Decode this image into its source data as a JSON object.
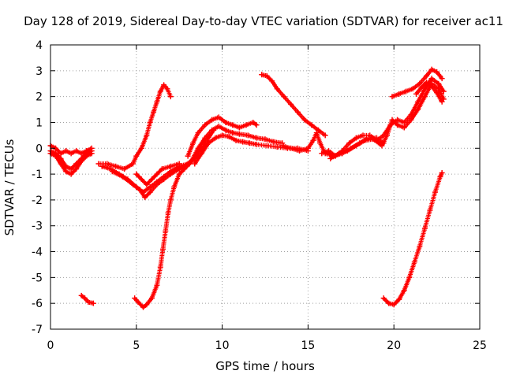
{
  "chart_data": {
    "type": "scatter",
    "title": "Day 128 of 2019, Sidereal Day-to-day VTEC variation (SDTVAR) for receiver ac11",
    "xlabel": "GPS time / hours",
    "ylabel": "SDTVAR / TECUs",
    "xlim": [
      0,
      25
    ],
    "ylim": [
      -7,
      4
    ],
    "xticks": [
      "0",
      "5",
      "10",
      "15",
      "20",
      "25"
    ],
    "yticks": [
      "-7",
      "-6",
      "-5",
      "-4",
      "-3",
      "-2",
      "-1",
      "0",
      "1",
      "2",
      "3",
      "4"
    ],
    "grid": true,
    "marker": "+",
    "color": "#ff0000",
    "series": [
      {
        "points": [
          [
            0,
            0.1
          ],
          [
            0.3,
            0
          ],
          [
            0.6,
            -0.2
          ],
          [
            0.9,
            -0.1
          ],
          [
            1.2,
            -0.2
          ],
          [
            1.5,
            -0.1
          ],
          [
            1.8,
            -0.2
          ],
          [
            2.1,
            -0.1
          ],
          [
            2.4,
            0
          ]
        ]
      },
      {
        "points": [
          [
            0,
            -0.1
          ],
          [
            0.3,
            -0.2
          ],
          [
            0.6,
            -0.4
          ],
          [
            0.9,
            -0.7
          ],
          [
            1.2,
            -0.8
          ],
          [
            1.5,
            -0.6
          ],
          [
            1.8,
            -0.4
          ],
          [
            2.1,
            -0.2
          ],
          [
            2.4,
            -0.1
          ]
        ]
      },
      {
        "points": [
          [
            0,
            -0.2
          ],
          [
            0.3,
            -0.3
          ],
          [
            0.6,
            -0.6
          ],
          [
            0.9,
            -0.9
          ],
          [
            1.2,
            -1
          ],
          [
            1.5,
            -0.8
          ],
          [
            1.8,
            -0.5
          ],
          [
            2.1,
            -0.3
          ],
          [
            2.4,
            -0.2
          ]
        ]
      },
      {
        "points": [
          [
            2.8,
            -0.6
          ],
          [
            3.3,
            -0.6
          ],
          [
            3.8,
            -0.7
          ],
          [
            4.3,
            -0.8
          ],
          [
            4.8,
            -0.6
          ],
          [
            5.0,
            -0.3
          ],
          [
            5.3,
            0
          ],
          [
            5.6,
            0.5
          ],
          [
            5.8,
            1
          ],
          [
            6.0,
            1.4
          ],
          [
            6.2,
            1.8
          ],
          [
            6.4,
            2.2
          ],
          [
            6.6,
            2.45
          ],
          [
            6.8,
            2.3
          ],
          [
            7.0,
            2.0
          ]
        ]
      },
      {
        "points": [
          [
            3.0,
            -0.7
          ],
          [
            3.5,
            -0.8
          ],
          [
            4.0,
            -1.0
          ],
          [
            4.5,
            -1.2
          ],
          [
            5.0,
            -1.5
          ],
          [
            5.4,
            -1.7
          ],
          [
            5.8,
            -1.5
          ],
          [
            6.2,
            -1.3
          ],
          [
            6.6,
            -1.1
          ],
          [
            7.0,
            -0.9
          ],
          [
            7.5,
            -0.7
          ],
          [
            8.0,
            -0.6
          ],
          [
            8.5,
            -0.3
          ]
        ]
      },
      {
        "points": [
          [
            3.6,
            -0.9
          ],
          [
            4.2,
            -1.1
          ],
          [
            4.8,
            -1.4
          ],
          [
            5.2,
            -1.6
          ],
          [
            5.5,
            -1.9
          ],
          [
            5.8,
            -1.7
          ],
          [
            6.2,
            -1.4
          ],
          [
            6.6,
            -1.2
          ],
          [
            7.0,
            -1.0
          ],
          [
            7.5,
            -0.8
          ],
          [
            8.0,
            -0.6
          ],
          [
            8.4,
            -0.4
          ]
        ]
      },
      {
        "points": [
          [
            5.0,
            -1.0
          ],
          [
            5.3,
            -1.2
          ],
          [
            5.6,
            -1.4
          ],
          [
            5.9,
            -1.2
          ],
          [
            6.2,
            -1.0
          ],
          [
            6.5,
            -0.8
          ],
          [
            7.0,
            -0.7
          ],
          [
            7.5,
            -0.6
          ]
        ]
      },
      {
        "points": [
          [
            1.8,
            -5.7
          ],
          [
            2.0,
            -5.8
          ],
          [
            2.2,
            -5.95
          ],
          [
            2.5,
            -6.0
          ]
        ]
      },
      {
        "points": [
          [
            4.9,
            -5.8
          ],
          [
            5.1,
            -5.95
          ],
          [
            5.4,
            -6.15
          ],
          [
            5.6,
            -6.05
          ],
          [
            5.9,
            -5.8
          ],
          [
            6.2,
            -5.3
          ],
          [
            6.4,
            -4.6
          ],
          [
            6.55,
            -3.9
          ],
          [
            6.7,
            -3.2
          ],
          [
            6.85,
            -2.5
          ],
          [
            7.0,
            -2.0
          ],
          [
            7.2,
            -1.5
          ],
          [
            7.5,
            -1.0
          ],
          [
            7.8,
            -0.8
          ],
          [
            8.1,
            -0.6
          ],
          [
            8.5,
            -0.3
          ],
          [
            9.0,
            0.2
          ],
          [
            9.5,
            0.7
          ]
        ]
      },
      {
        "points": [
          [
            8.0,
            -0.3
          ],
          [
            8.3,
            0.2
          ],
          [
            8.6,
            0.6
          ],
          [
            9.0,
            0.9
          ],
          [
            9.4,
            1.1
          ],
          [
            9.8,
            1.2
          ],
          [
            10.2,
            1.0
          ],
          [
            10.6,
            0.9
          ],
          [
            11.0,
            0.8
          ],
          [
            11.4,
            0.9
          ],
          [
            11.8,
            1.0
          ],
          [
            12.0,
            0.9
          ]
        ]
      },
      {
        "points": [
          [
            8.2,
            -0.5
          ],
          [
            8.6,
            0
          ],
          [
            9.0,
            0.4
          ],
          [
            9.4,
            0.7
          ],
          [
            9.8,
            0.85
          ],
          [
            10.2,
            0.7
          ],
          [
            10.6,
            0.6
          ],
          [
            11.0,
            0.55
          ],
          [
            11.5,
            0.5
          ],
          [
            12.0,
            0.4
          ],
          [
            12.5,
            0.35
          ],
          [
            13.0,
            0.25
          ],
          [
            13.5,
            0.2
          ]
        ]
      },
      {
        "points": [
          [
            8.4,
            -0.6
          ],
          [
            8.8,
            -0.2
          ],
          [
            9.2,
            0.2
          ],
          [
            9.6,
            0.4
          ],
          [
            10.0,
            0.5
          ],
          [
            10.4,
            0.45
          ],
          [
            10.8,
            0.3
          ],
          [
            11.2,
            0.25
          ],
          [
            11.6,
            0.2
          ],
          [
            12.0,
            0.15
          ],
          [
            12.6,
            0.1
          ],
          [
            13.2,
            0.05
          ],
          [
            13.8,
            0
          ],
          [
            14.4,
            0
          ],
          [
            15.0,
            -0.1
          ]
        ]
      },
      {
        "points": [
          [
            12.3,
            2.85
          ],
          [
            12.6,
            2.8
          ],
          [
            12.9,
            2.6
          ],
          [
            13.2,
            2.3
          ],
          [
            13.6,
            2.0
          ],
          [
            14.0,
            1.7
          ],
          [
            14.4,
            1.4
          ],
          [
            14.8,
            1.1
          ],
          [
            15.2,
            0.9
          ],
          [
            15.6,
            0.7
          ],
          [
            16.0,
            0.5
          ]
        ]
      },
      {
        "points": [
          [
            13.5,
            0.1
          ],
          [
            14.0,
            0
          ],
          [
            14.5,
            -0.1
          ],
          [
            15.0,
            0
          ],
          [
            15.3,
            0.3
          ],
          [
            15.5,
            0.6
          ],
          [
            15.7,
            0.2
          ],
          [
            16.0,
            -0.2
          ],
          [
            16.5,
            -0.3
          ],
          [
            17.0,
            -0.2
          ],
          [
            17.5,
            0
          ],
          [
            18.0,
            0.2
          ],
          [
            18.5,
            0.4
          ],
          [
            19.0,
            0.4
          ],
          [
            19.4,
            0.2
          ]
        ]
      },
      {
        "points": [
          [
            15.8,
            -0.2
          ],
          [
            16.2,
            -0.1
          ],
          [
            16.6,
            -0.3
          ],
          [
            17.0,
            -0.1
          ],
          [
            17.4,
            0.2
          ],
          [
            17.8,
            0.4
          ],
          [
            18.2,
            0.5
          ],
          [
            18.6,
            0.5
          ],
          [
            19.0,
            0.3
          ],
          [
            19.4,
            0.5
          ],
          [
            19.8,
            0.9
          ],
          [
            20.2,
            1.1
          ],
          [
            20.6,
            1.0
          ],
          [
            21.0,
            1.3
          ],
          [
            21.4,
            1.8
          ],
          [
            21.8,
            2.3
          ],
          [
            22.2,
            2.7
          ],
          [
            22.6,
            2.5
          ],
          [
            22.9,
            2.2
          ]
        ]
      },
      {
        "points": [
          [
            16.3,
            -0.4
          ],
          [
            16.8,
            -0.2
          ],
          [
            17.3,
            -0.1
          ],
          [
            17.8,
            0.1
          ],
          [
            18.3,
            0.3
          ],
          [
            18.8,
            0.35
          ],
          [
            19.3,
            0.1
          ],
          [
            19.6,
            0.5
          ],
          [
            19.9,
            1.1
          ],
          [
            20.2,
            0.9
          ],
          [
            20.6,
            0.8
          ],
          [
            21.0,
            1.1
          ],
          [
            21.4,
            1.5
          ],
          [
            21.8,
            2.0
          ],
          [
            22.2,
            2.5
          ],
          [
            22.6,
            2.3
          ],
          [
            22.9,
            1.9
          ]
        ]
      },
      {
        "points": [
          [
            19.9,
            2.0
          ],
          [
            20.3,
            2.1
          ],
          [
            20.7,
            2.2
          ],
          [
            21.1,
            2.3
          ],
          [
            21.5,
            2.5
          ],
          [
            21.9,
            2.8
          ],
          [
            22.2,
            3.05
          ],
          [
            22.5,
            2.95
          ],
          [
            22.8,
            2.7
          ]
        ]
      },
      {
        "points": [
          [
            21.3,
            2.1
          ],
          [
            21.6,
            2.35
          ],
          [
            21.9,
            2.55
          ],
          [
            22.2,
            2.4
          ],
          [
            22.5,
            2.15
          ],
          [
            22.8,
            1.8
          ]
        ]
      },
      {
        "points": [
          [
            19.4,
            -5.8
          ],
          [
            19.7,
            -6.0
          ],
          [
            20.0,
            -6.05
          ],
          [
            20.3,
            -5.85
          ],
          [
            20.6,
            -5.5
          ],
          [
            20.9,
            -5.0
          ],
          [
            21.2,
            -4.4
          ],
          [
            21.5,
            -3.8
          ],
          [
            21.8,
            -3.1
          ],
          [
            22.1,
            -2.4
          ],
          [
            22.4,
            -1.7
          ],
          [
            22.7,
            -1.1
          ],
          [
            22.8,
            -0.95
          ]
        ]
      }
    ]
  }
}
